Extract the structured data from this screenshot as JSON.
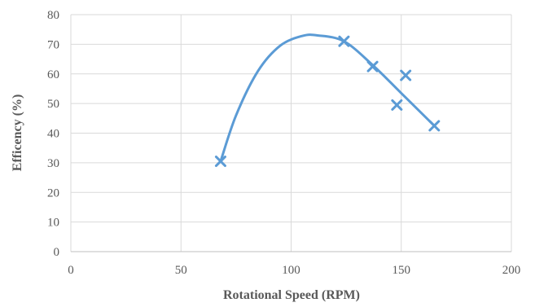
{
  "chart_data": {
    "type": "scatter",
    "title": "",
    "xlabel": "Rotational Speed (RPM)",
    "ylabel": "Efficency (%)",
    "xlim": [
      0,
      200
    ],
    "ylim": [
      0,
      80
    ],
    "x_ticks": [
      0,
      50,
      100,
      150,
      200
    ],
    "y_ticks": [
      0,
      10,
      20,
      30,
      40,
      50,
      60,
      70,
      80
    ],
    "grid": true,
    "legend": "none",
    "series": [
      {
        "marker": "x",
        "color": "#5b9bd5",
        "points": [
          {
            "x": 68,
            "y": 30.5
          },
          {
            "x": 124,
            "y": 71
          },
          {
            "x": 137,
            "y": 62.5
          },
          {
            "x": 148,
            "y": 49.5
          },
          {
            "x": 152,
            "y": 59.5
          },
          {
            "x": 165,
            "y": 42.5
          }
        ]
      }
    ],
    "trendline": {
      "type": "polynomial",
      "color": "#5b9bd5",
      "points": [
        {
          "x": 68,
          "y": 30.5
        },
        {
          "x": 75,
          "y": 46
        },
        {
          "x": 85,
          "y": 61
        },
        {
          "x": 95,
          "y": 69.5
        },
        {
          "x": 105,
          "y": 72.8
        },
        {
          "x": 112,
          "y": 73
        },
        {
          "x": 124,
          "y": 71
        },
        {
          "x": 137,
          "y": 63
        },
        {
          "x": 150,
          "y": 53.5
        },
        {
          "x": 165,
          "y": 42.5
        }
      ]
    }
  }
}
